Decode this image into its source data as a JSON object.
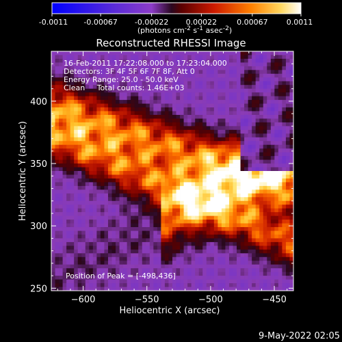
{
  "chart_data": {
    "type": "heatmap",
    "title": "Reconstructed RHESSI Image",
    "xlabel": "Heliocentric X (arcsec)",
    "ylabel": "Heliocentric Y (arcsec)",
    "xlim": [
      -625,
      -435
    ],
    "ylim": [
      248,
      440
    ],
    "xticks": [
      -600,
      -550,
      -500,
      -450
    ],
    "yticks": [
      250,
      300,
      350,
      400
    ],
    "colorbar": {
      "label_text": "(photons cm",
      "label_sup1": "-2",
      "label_mid1": " s",
      "label_sup2": "-1",
      "label_mid2": " asec",
      "label_sup3": "-2",
      "label_end": ")",
      "range": [
        -0.0011,
        0.0011
      ],
      "ticks": [
        "-0.0011",
        "-0.00067",
        "-0.00022",
        "0.00022",
        "0.00067",
        "0.0011"
      ]
    },
    "annotations": [
      "16-Feb-2011 17:22:08.000 to 17:23:04.000",
      "Detectors: 3F 4F 5F 6F 7F 8F, Att 0",
      "Energy Range: 25.0 - 50.0 keV",
      "Clean     Total counts: 1.46E+03"
    ],
    "peak_label": "Position of Peak = [-498,436]",
    "peak_position": [
      -498,
      436
    ],
    "grid": false
  },
  "footer": {
    "date": "9-May-2022 02:05"
  }
}
